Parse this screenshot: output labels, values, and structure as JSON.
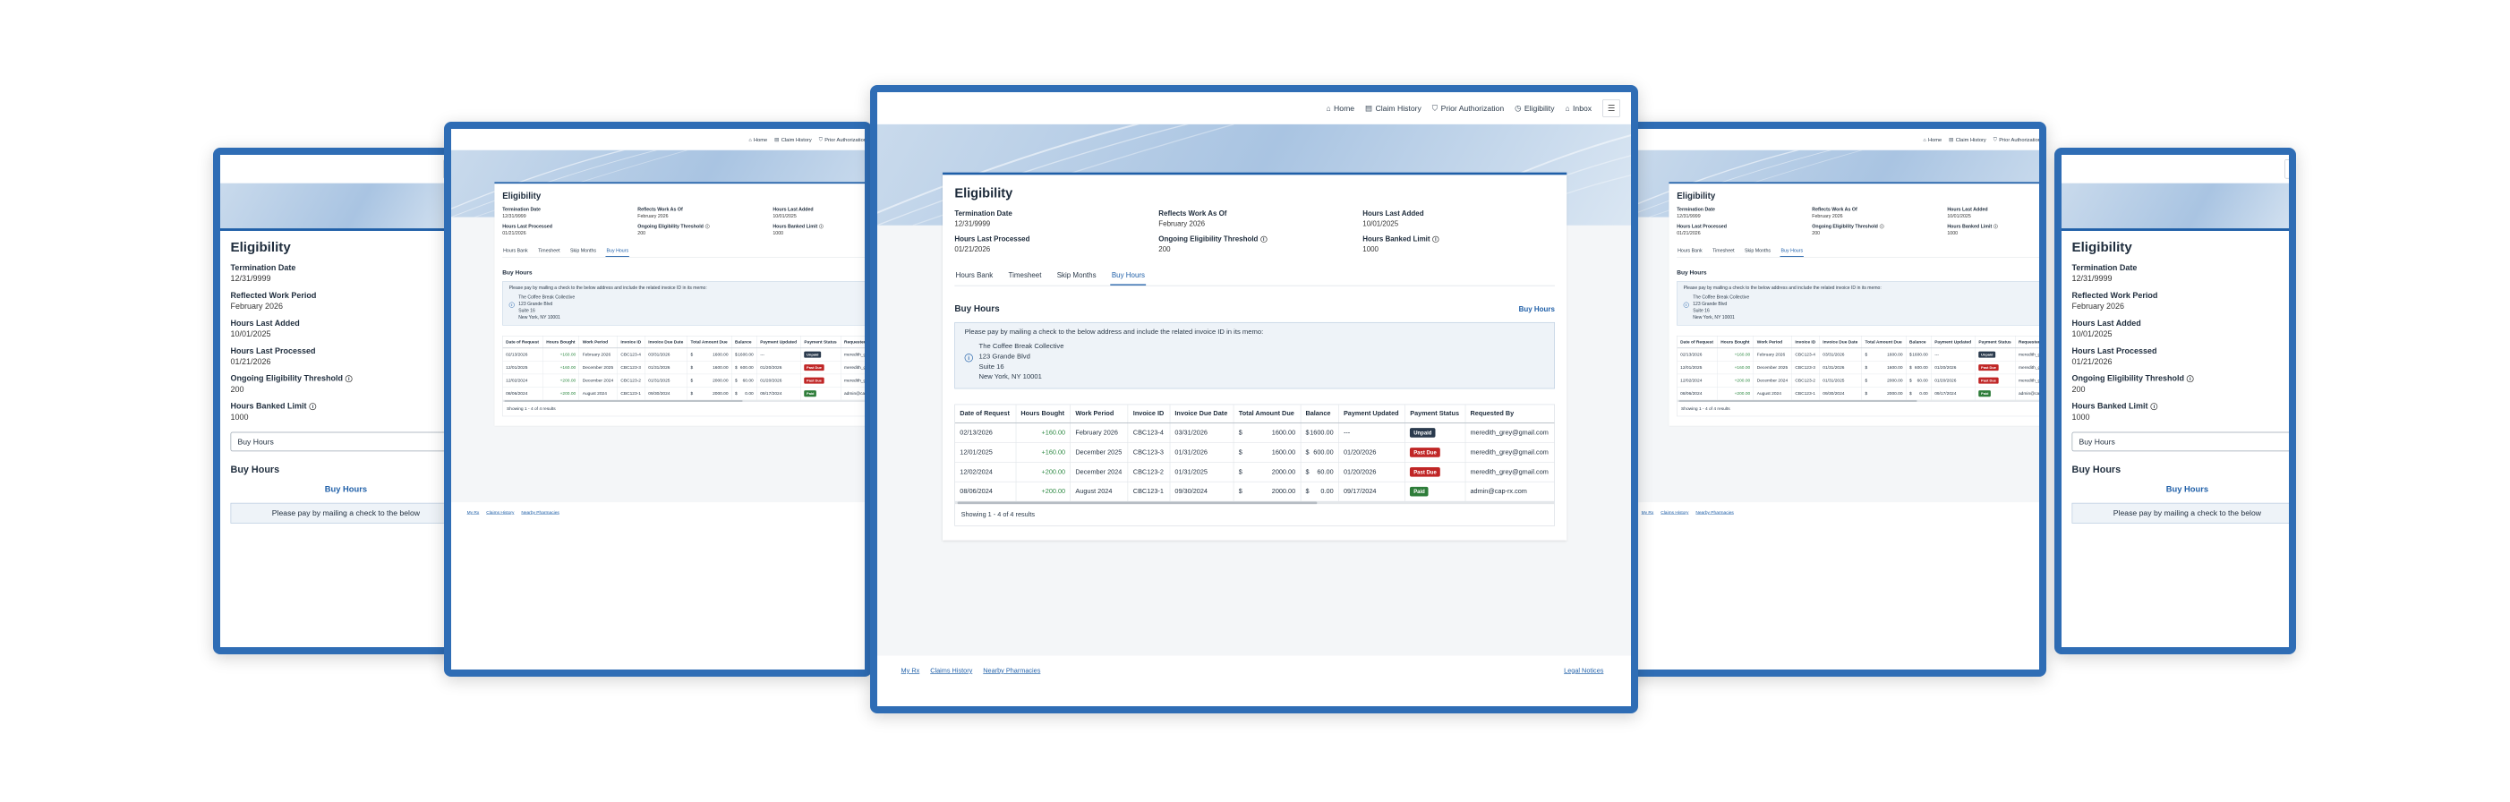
{
  "nav": {
    "home": "Home",
    "claim_history": "Claim History",
    "prior_authorization": "Prior Authorization",
    "eligibility": "Eligibility",
    "inbox": "Inbox"
  },
  "page_title": "Eligibility",
  "desktop_stats": [
    {
      "label": "Termination Date",
      "value": "12/31/9999",
      "info": false
    },
    {
      "label": "Reflects Work As Of",
      "value": "February 2026",
      "info": false
    },
    {
      "label": "Hours Last Added",
      "value": "10/01/2025",
      "info": false
    },
    {
      "label": "Hours Last Processed",
      "value": "01/21/2026",
      "info": false
    },
    {
      "label": "Ongoing Eligibility Threshold",
      "value": "200",
      "info": true
    },
    {
      "label": "Hours Banked Limit",
      "value": "1000",
      "info": true
    }
  ],
  "mobile_stats": [
    {
      "label": "Termination Date",
      "value": "12/31/9999",
      "info": false
    },
    {
      "label": "Reflected Work Period",
      "value": "February 2026",
      "info": false
    },
    {
      "label": "Hours Last Added",
      "value": "10/01/2025",
      "info": false
    },
    {
      "label": "Hours Last Processed",
      "value": "01/21/2026",
      "info": false
    },
    {
      "label": "Ongoing Eligibility Threshold",
      "value": "200",
      "info": true
    },
    {
      "label": "Hours Banked Limit",
      "value": "1000",
      "info": true
    }
  ],
  "tabs": [
    "Hours Bank",
    "Timesheet",
    "Skip Months",
    "Buy Hours"
  ],
  "active_tab": "Buy Hours",
  "section_title": "Buy Hours",
  "buy_hours_link": "Buy Hours",
  "notice": {
    "text": "Please pay by mailing a check to the below address and include the related invoice ID in its memo:",
    "address": [
      "The Coffee Break Collective",
      "123 Grande Blvd",
      "Suite 16",
      "New York, NY 10001"
    ]
  },
  "mobile_select": "Buy Hours",
  "mobile_notice": "Please pay by mailing a check to the below",
  "table": {
    "columns": [
      "Date of Request",
      "Hours Bought",
      "Work Period",
      "Invoice ID",
      "Invoice Due Date",
      "Total Amount Due",
      "Balance",
      "Payment Updated",
      "Payment Status",
      "Requested By"
    ],
    "rows": [
      {
        "date": "02/13/2026",
        "hours": "+160.00",
        "period": "February 2026",
        "invoice": "CBC123-4",
        "due": "03/31/2026",
        "total": "1600.00",
        "balance": "1600.00",
        "updated": "---",
        "status": "Unpaid",
        "by": "meredith_grey@gmail.com"
      },
      {
        "date": "12/01/2025",
        "hours": "+160.00",
        "period": "December 2025",
        "invoice": "CBC123-3",
        "due": "01/31/2026",
        "total": "1600.00",
        "balance": "600.00",
        "updated": "01/20/2026",
        "status": "Past Due",
        "by": "meredith_grey@gmail.com"
      },
      {
        "date": "12/02/2024",
        "hours": "+200.00",
        "period": "December 2024",
        "invoice": "CBC123-2",
        "due": "01/31/2025",
        "total": "2000.00",
        "balance": "60.00",
        "updated": "01/20/2026",
        "status": "Past Due",
        "by": "meredith_grey@gmail.com"
      },
      {
        "date": "08/06/2024",
        "hours": "+200.00",
        "period": "August 2024",
        "invoice": "CBC123-1",
        "due": "09/30/2024",
        "total": "2000.00",
        "balance": "0.00",
        "updated": "09/17/2024",
        "status": "Paid",
        "by": "admin@cap-rx.com"
      }
    ],
    "currency": "$",
    "results": "Showing 1 - 4 of 4 results"
  },
  "footer": {
    "my_rx": "My Rx",
    "claims_history": "Claims History",
    "nearby_pharmacies": "Nearby Pharmacies",
    "legal": "Legal Notices"
  },
  "colors": {
    "accent": "#1f5fa8",
    "frame": "#2f6db5",
    "hours_green": "#2f8a44",
    "unpaid": "#2a3a4d",
    "past_due": "#c02626",
    "paid": "#2e7d3a"
  }
}
